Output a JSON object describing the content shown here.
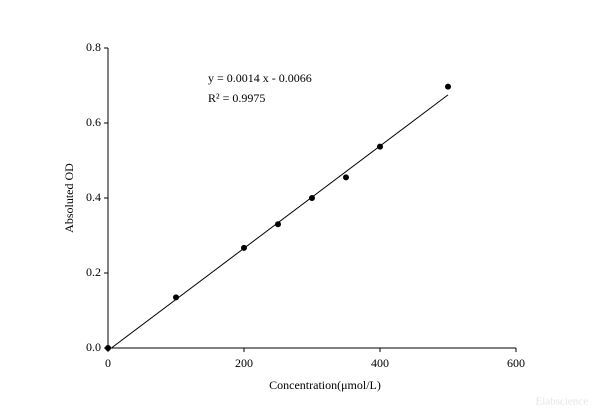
{
  "chart_data": {
    "type": "scatter",
    "x_label": "Concentration(μmol/L)",
    "y_label": "Absoluted OD",
    "annotations": [
      "y = 0.0014 x - 0.0066",
      "R² = 0.9975"
    ],
    "watermark": "Elabscience",
    "x": [
      0,
      100,
      200,
      250,
      300,
      350,
      400,
      500
    ],
    "values": [
      0,
      0.135,
      0.267,
      0.33,
      0.4,
      0.455,
      0.537,
      0.697
    ],
    "color": "#000000",
    "fit_line": {
      "x": [
        5,
        500
      ],
      "y": [
        0,
        0.675
      ]
    },
    "xlim": [
      0,
      600
    ],
    "xticks": [
      0,
      200,
      400,
      600
    ],
    "ylim": [
      0,
      0.8
    ],
    "yticks": [
      {
        "value": 0,
        "label": "0.0"
      },
      0.2,
      0.4,
      0.6,
      0.8
    ]
  }
}
